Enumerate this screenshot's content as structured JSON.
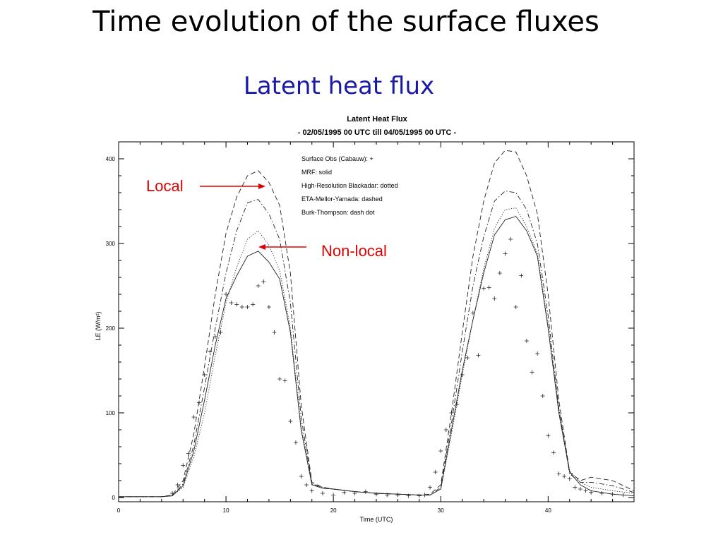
{
  "slide": {
    "title": "Time evolution of the surface fluxes",
    "subtitle": "Latent heat flux"
  },
  "annotations": {
    "local": "Local",
    "nonlocal": "Non-local",
    "color": "#e00000"
  },
  "chart_data": {
    "type": "line",
    "title": "Latent Heat Flux",
    "subtitle": "- 02/05/1995  00 UTC  till  04/05/1995  00 UTC -",
    "xlabel": "Time  (UTC)",
    "ylabel": "LE  (W/m²)",
    "xlim": [
      0,
      48
    ],
    "ylim": [
      -5,
      420
    ],
    "xticks": [
      0,
      10,
      20,
      30,
      40
    ],
    "yticks": [
      0,
      100,
      200,
      300,
      400
    ],
    "grid": false,
    "legend_position": "top-center",
    "legend": [
      "Surface Obs (Cabauw): +",
      "MRF: solid",
      "High-Resolution Blackadar: dotted",
      "ETA-Mellor-Yamada: dashed",
      "Burk-Thompson: dash dot"
    ],
    "series": [
      {
        "name": "MRF",
        "style": "solid",
        "x": [
          0,
          2,
          4,
          5,
          6,
          7,
          8,
          9,
          10,
          11,
          12,
          13,
          14,
          15,
          16,
          17,
          18,
          19,
          20,
          22,
          24,
          26,
          28,
          29,
          30,
          31,
          32,
          33,
          34,
          35,
          36,
          37,
          38,
          39,
          40,
          41,
          42,
          43,
          44,
          46,
          48
        ],
        "y": [
          1,
          1,
          1,
          2,
          14,
          55,
          115,
          180,
          235,
          262,
          285,
          291,
          278,
          258,
          195,
          80,
          15,
          11,
          10,
          7,
          5,
          4,
          3,
          3,
          10,
          80,
          150,
          210,
          265,
          310,
          328,
          332,
          315,
          285,
          200,
          100,
          30,
          15,
          8,
          4,
          2
        ]
      },
      {
        "name": "High-Resolution Blackadar",
        "style": "dotted",
        "x": [
          0,
          2,
          4,
          5,
          6,
          7,
          8,
          9,
          10,
          11,
          12,
          13,
          14,
          15,
          16,
          17,
          18,
          19,
          20,
          22,
          24,
          26,
          28,
          29,
          30,
          31,
          32,
          33,
          34,
          35,
          36,
          37,
          38,
          39,
          40,
          41,
          42,
          43,
          44,
          46,
          48
        ],
        "y": [
          1,
          1,
          1,
          2,
          12,
          48,
          100,
          168,
          230,
          272,
          305,
          315,
          298,
          268,
          200,
          85,
          16,
          12,
          10,
          7,
          5,
          4,
          3,
          3,
          10,
          75,
          145,
          210,
          270,
          318,
          340,
          342,
          320,
          288,
          205,
          105,
          32,
          18,
          12,
          8,
          5
        ]
      },
      {
        "name": "ETA-Mellor-Yamada",
        "style": "dashed",
        "x": [
          0,
          2,
          4,
          5,
          6,
          7,
          8,
          9,
          10,
          11,
          12,
          13,
          14,
          15,
          16,
          17,
          18,
          19,
          20,
          22,
          24,
          26,
          28,
          29,
          30,
          31,
          32,
          33,
          34,
          35,
          36,
          37,
          38,
          39,
          40,
          41,
          42,
          43,
          44,
          46,
          48
        ],
        "y": [
          1,
          1,
          1,
          3,
          20,
          75,
          155,
          240,
          312,
          355,
          380,
          386,
          372,
          345,
          265,
          110,
          18,
          12,
          10,
          7,
          5,
          4,
          3,
          4,
          15,
          100,
          195,
          285,
          350,
          395,
          410,
          408,
          380,
          335,
          240,
          115,
          30,
          20,
          24,
          20,
          8
        ]
      },
      {
        "name": "Burk-Thompson",
        "style": "dashdot",
        "x": [
          0,
          2,
          4,
          5,
          6,
          7,
          8,
          9,
          10,
          11,
          12,
          13,
          14,
          15,
          16,
          17,
          18,
          19,
          20,
          22,
          24,
          26,
          28,
          29,
          30,
          31,
          32,
          33,
          34,
          35,
          36,
          37,
          38,
          39,
          40,
          41,
          42,
          43,
          44,
          46,
          48
        ],
        "y": [
          1,
          1,
          1,
          2,
          16,
          62,
          130,
          200,
          265,
          315,
          348,
          352,
          335,
          305,
          230,
          95,
          16,
          12,
          10,
          7,
          5,
          4,
          3,
          3,
          12,
          88,
          172,
          250,
          308,
          350,
          362,
          360,
          340,
          300,
          215,
          105,
          28,
          18,
          18,
          14,
          6
        ]
      }
    ],
    "observations": {
      "name": "Surface Obs (Cabauw)",
      "x": [
        5,
        5.5,
        6,
        6.5,
        7,
        7.5,
        8,
        8.5,
        9,
        9.5,
        10,
        10.5,
        11,
        11.5,
        12,
        12.5,
        13,
        13.5,
        14,
        14.5,
        15,
        15.5,
        16,
        16.5,
        17,
        17.5,
        18,
        19,
        20,
        21,
        22,
        23,
        24,
        25,
        26,
        27,
        28,
        28.5,
        29,
        29.5,
        30,
        30.5,
        31,
        31.5,
        32,
        32.5,
        33,
        33.5,
        34,
        34.5,
        35,
        35.5,
        36,
        36.5,
        37,
        37.5,
        38,
        38.5,
        39,
        39.5,
        40,
        40.5,
        41,
        41.5,
        42,
        42.5,
        43,
        43.5,
        44,
        45,
        46,
        47
      ],
      "y": [
        5,
        15,
        38,
        52,
        95,
        112,
        145,
        172,
        190,
        195,
        240,
        230,
        228,
        225,
        225,
        228,
        250,
        255,
        225,
        195,
        140,
        138,
        90,
        65,
        25,
        15,
        8,
        5,
        3,
        6,
        5,
        7,
        4,
        3,
        3,
        2,
        2,
        3,
        12,
        30,
        55,
        80,
        100,
        110,
        145,
        165,
        218,
        168,
        247,
        248,
        235,
        265,
        288,
        305,
        225,
        262,
        185,
        148,
        170,
        120,
        73,
        53,
        28,
        25,
        22,
        12,
        10,
        8,
        6,
        5,
        4,
        3
      ]
    }
  }
}
